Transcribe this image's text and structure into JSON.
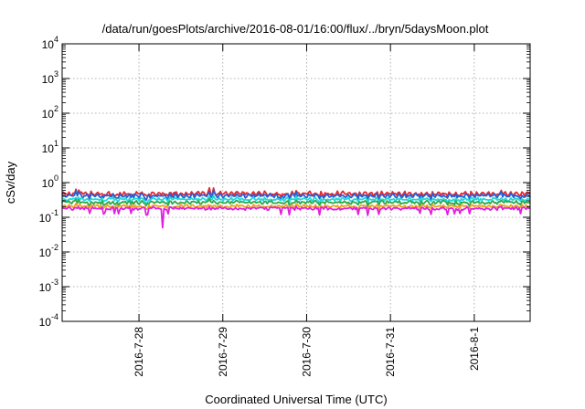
{
  "chart_data": {
    "type": "line",
    "title": "/data/run/goesPlots/archive/2016-08-01/16:00/flux/../bryn/5daysMoon.plot",
    "xlabel": "Coordinated Universal Time (UTC)",
    "ylabel": "cSv/day",
    "yscale": "log",
    "ylim": [
      0.0001,
      10000
    ],
    "xlim": [
      "2016-07-27 02:00",
      "2016-08-01 16:00"
    ],
    "grid": true,
    "y_ticks": [
      {
        "base": "10",
        "exp": "-4",
        "value": 0.0001
      },
      {
        "base": "10",
        "exp": "-3",
        "value": 0.001
      },
      {
        "base": "10",
        "exp": "-2",
        "value": 0.01
      },
      {
        "base": "10",
        "exp": "-1",
        "value": 0.1
      },
      {
        "base": "10",
        "exp": "0",
        "value": 1
      },
      {
        "base": "10",
        "exp": "1",
        "value": 10
      },
      {
        "base": "10",
        "exp": "2",
        "value": 100
      },
      {
        "base": "10",
        "exp": "3",
        "value": 1000
      },
      {
        "base": "10",
        "exp": "4",
        "value": 10000
      }
    ],
    "x_ticks": [
      "2016-7-28",
      "2016-7-29",
      "2016-7-30",
      "2016-7-31",
      "2016-8-1"
    ],
    "x_tick_dates": [
      "2016-07-28",
      "2016-07-29",
      "2016-07-30",
      "2016-07-31",
      "2016-08-01"
    ],
    "series": [
      {
        "color": "#e8262c",
        "base": 0.48,
        "amp": 0.09,
        "dip": 0.82,
        "spike": 1.3
      },
      {
        "color": "#2460d6",
        "base": 0.42,
        "amp": 0.08,
        "dip": 0.8,
        "spike": 1.3
      },
      {
        "color": "#22d8d8",
        "base": 0.33,
        "amp": 0.05,
        "dip": 0.84,
        "spike": 1.2
      },
      {
        "color": "#2ea84a",
        "base": 0.27,
        "amp": 0.04,
        "dip": 0.85,
        "spike": 1.15
      },
      {
        "color": "#f0a020",
        "base": 0.21,
        "amp": 0.03,
        "dip": 0.85,
        "spike": 1.1
      },
      {
        "color": "#e020e0",
        "base": 0.18,
        "amp": 0.03,
        "dip": 0.68,
        "spike": 1.1
      }
    ]
  }
}
